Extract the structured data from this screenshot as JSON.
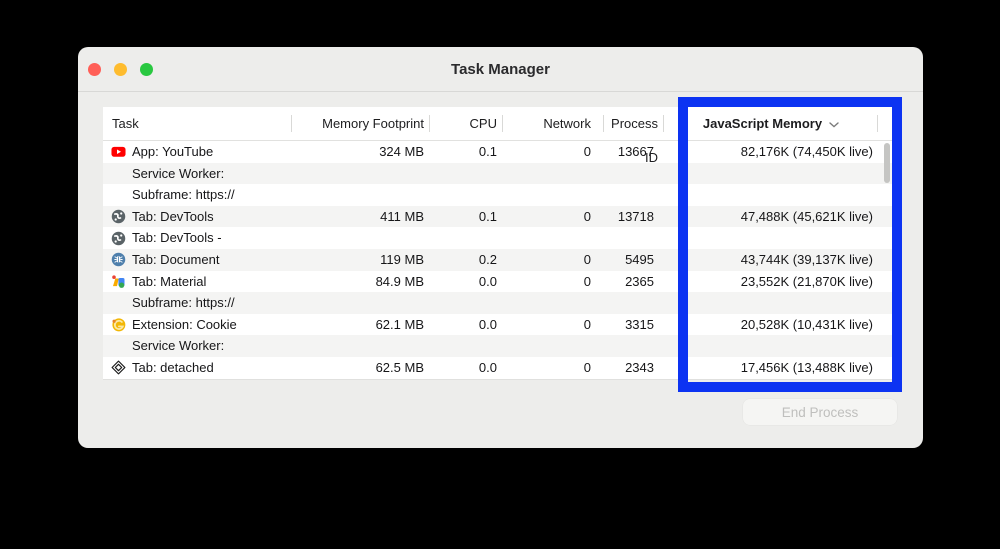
{
  "window": {
    "title": "Task Manager"
  },
  "table": {
    "columns": [
      {
        "label": "Task"
      },
      {
        "label": "Memory Footprint"
      },
      {
        "label": "CPU"
      },
      {
        "label": "Network"
      },
      {
        "label": "Process ID"
      },
      {
        "label": "JavaScript Memory",
        "sorted": true,
        "sort_indicator": "chevron-down"
      }
    ],
    "rows": [
      {
        "icon": "youtube",
        "task": "App: YouTube",
        "memory": "324 MB",
        "cpu": "0.1",
        "network": "0",
        "pid": "13667",
        "js": "82,176K (74,450K live)"
      },
      {
        "icon": null,
        "task": "Service Worker:"
      },
      {
        "icon": null,
        "task": "Subframe: https://"
      },
      {
        "icon": "devtools",
        "task": "Tab: DevTools",
        "memory": "411 MB",
        "cpu": "0.1",
        "network": "0",
        "pid": "13718",
        "js": "47,488K (45,621K live)"
      },
      {
        "icon": "devtools",
        "task": "Tab: DevTools -"
      },
      {
        "icon": "bug",
        "task": "Tab: Document",
        "memory": "119 MB",
        "cpu": "0.2",
        "network": "0",
        "pid": "5495",
        "js": "43,744K (39,137K live)"
      },
      {
        "icon": "material",
        "task": "Tab: Material",
        "memory": "84.9 MB",
        "cpu": "0.0",
        "network": "0",
        "pid": "2365",
        "js": "23,552K (21,870K live)"
      },
      {
        "icon": null,
        "task": "Subframe: https://"
      },
      {
        "icon": "cookie",
        "task": "Extension: Cookie",
        "memory": "62.1 MB",
        "cpu": "0.0",
        "network": "0",
        "pid": "3315",
        "js": "20,528K (10,431K live)"
      },
      {
        "icon": null,
        "task": "Service Worker:"
      },
      {
        "icon": "detached",
        "task": "Tab: detached",
        "memory": "62.5 MB",
        "cpu": "0.0",
        "network": "0",
        "pid": "2343",
        "js": "17,456K (13,488K live)"
      }
    ]
  },
  "footer": {
    "end_process_label": "End Process"
  },
  "highlight": {
    "color": "#0C33F2"
  }
}
